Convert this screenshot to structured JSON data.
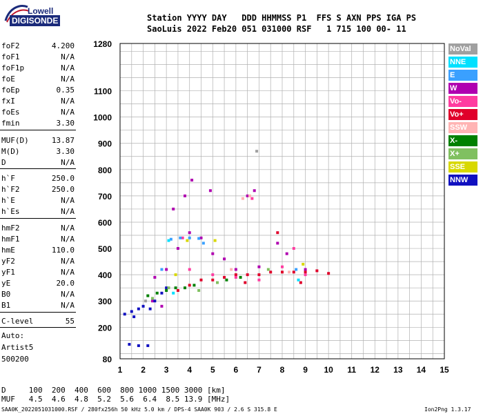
{
  "logo": {
    "line1": "Lowell",
    "line2": "DIGISONDE"
  },
  "header": {
    "row1": "Station YYYY DAY   DDD HHMMSS P1  FFS S AXN PPS IGA PS",
    "row2": "SaoLuis 2022 Feb20 051 031000 RSF   1 715 100 00- 11"
  },
  "params": [
    {
      "k": "foF2",
      "v": "4.200"
    },
    {
      "k": "foF1",
      "v": "N/A"
    },
    {
      "k": "foF1p",
      "v": "N/A"
    },
    {
      "k": "foE",
      "v": "N/A"
    },
    {
      "k": "foEp",
      "v": "0.35"
    },
    {
      "k": "fxI",
      "v": "N/A"
    },
    {
      "k": "foEs",
      "v": "N/A"
    },
    {
      "k": "fmin",
      "v": "3.30"
    },
    {
      "k": "MUF(D)",
      "v": "13.87"
    },
    {
      "k": "M(D)",
      "v": "3.30"
    },
    {
      "k": "D",
      "v": "N/A"
    },
    {
      "k": "h`F",
      "v": "250.0"
    },
    {
      "k": "h`F2",
      "v": "250.0"
    },
    {
      "k": "h`E",
      "v": "N/A"
    },
    {
      "k": "h`Es",
      "v": "N/A"
    },
    {
      "k": "hmF2",
      "v": "N/A"
    },
    {
      "k": "hmF1",
      "v": "N/A"
    },
    {
      "k": "hmE",
      "v": "110.0"
    },
    {
      "k": "yF2",
      "v": "N/A"
    },
    {
      "k": "yF1",
      "v": "N/A"
    },
    {
      "k": "yE",
      "v": "20.0"
    },
    {
      "k": "B0",
      "v": "N/A"
    },
    {
      "k": "B1",
      "v": "N/A"
    },
    {
      "k": "C-level",
      "v": "55"
    }
  ],
  "autoscale": {
    "line1": "Auto:",
    "line2": "Artist5",
    "line3": "500200"
  },
  "legend": [
    {
      "label": "NoVal",
      "bg": "#a0a0a0",
      "fg": "#ffffff"
    },
    {
      "label": "NNE",
      "bg": "#00e0ff",
      "fg": "#ffffff"
    },
    {
      "label": "E",
      "bg": "#3aa0ff",
      "fg": "#ffffff"
    },
    {
      "label": "W",
      "bg": "#b000b0",
      "fg": "#ffffff"
    },
    {
      "label": "Vo-",
      "bg": "#ff3ca0",
      "fg": "#ffffff"
    },
    {
      "label": "Vo+",
      "bg": "#e0002a",
      "fg": "#ffffff"
    },
    {
      "label": "SSW",
      "bg": "#ffb4b4",
      "fg": "#ffffff"
    },
    {
      "label": "X-",
      "bg": "#008000",
      "fg": "#ffffff"
    },
    {
      "label": "X+",
      "bg": "#80c060",
      "fg": "#ffffff"
    },
    {
      "label": "SSE",
      "bg": "#d8d800",
      "fg": "#ffffff"
    },
    {
      "label": "NNW",
      "bg": "#1010c0",
      "fg": "#ffffff"
    }
  ],
  "bottom": {
    "d_row": "D     100  200  400  600  800 1000 1500 3000 [km]",
    "muf_row": "MUF   4.5  4.6  4.8  5.2  5.6  6.4  8.5 13.9 [MHz]"
  },
  "footer": {
    "left": "SAA0K_2022051031000.RSF / 280fx256h 50 kHz 5.0 km / DPS-4 SAA0K 903 / 2.6 S 315.8 E",
    "right": "Ion2Png 1.3.17"
  },
  "chart_data": {
    "type": "scatter",
    "title": "",
    "xlabel": "",
    "ylabel": "",
    "xlim": [
      1,
      15
    ],
    "ylim": [
      80,
      1280
    ],
    "x_ticks": [
      1,
      2,
      3,
      4,
      5,
      6,
      7,
      8,
      9,
      10,
      11,
      12,
      13,
      14,
      15
    ],
    "y_tick_labels": [
      80,
      200,
      300,
      400,
      500,
      600,
      700,
      800,
      900,
      1000,
      1100,
      1280
    ],
    "grid": true,
    "legend_placement": "right",
    "series": [
      {
        "name": "W",
        "color": "#b000b0",
        "points": [
          [
            2.5,
            390
          ],
          [
            3.0,
            420
          ],
          [
            3.5,
            500
          ],
          [
            4.0,
            560
          ],
          [
            4.5,
            540
          ],
          [
            5.0,
            480
          ],
          [
            5.5,
            460
          ],
          [
            6.0,
            420
          ],
          [
            7.0,
            430
          ],
          [
            7.8,
            520
          ],
          [
            8.2,
            480
          ],
          [
            9.0,
            420
          ],
          [
            3.8,
            700
          ],
          [
            4.1,
            760
          ],
          [
            3.3,
            650
          ],
          [
            4.9,
            720
          ],
          [
            6.5,
            700
          ],
          [
            6.8,
            720
          ],
          [
            2.4,
            300
          ],
          [
            2.8,
            280
          ]
        ]
      },
      {
        "name": "Vo+",
        "color": "#e0002a",
        "points": [
          [
            3.5,
            340
          ],
          [
            4.0,
            360
          ],
          [
            4.5,
            380
          ],
          [
            5.0,
            380
          ],
          [
            5.5,
            390
          ],
          [
            6.0,
            400
          ],
          [
            6.5,
            400
          ],
          [
            7.0,
            400
          ],
          [
            7.5,
            410
          ],
          [
            8.0,
            410
          ],
          [
            8.5,
            410
          ],
          [
            9.0,
            410
          ],
          [
            9.5,
            415
          ],
          [
            10.0,
            405
          ],
          [
            7.8,
            560
          ],
          [
            6.4,
            370
          ],
          [
            8.8,
            370
          ]
        ]
      },
      {
        "name": "Vo-",
        "color": "#ff3ca0",
        "points": [
          [
            4.0,
            420
          ],
          [
            5.0,
            400
          ],
          [
            6.0,
            390
          ],
          [
            7.0,
            380
          ],
          [
            8.0,
            430
          ],
          [
            9.0,
            400
          ],
          [
            8.5,
            500
          ],
          [
            6.7,
            690
          ],
          [
            3.7,
            540
          ]
        ]
      },
      {
        "name": "NNW",
        "color": "#1010c0",
        "points": [
          [
            1.2,
            250
          ],
          [
            1.5,
            260
          ],
          [
            1.8,
            270
          ],
          [
            2.0,
            280
          ],
          [
            2.3,
            270
          ],
          [
            2.5,
            300
          ],
          [
            2.8,
            330
          ],
          [
            3.0,
            350
          ],
          [
            1.4,
            135
          ],
          [
            1.8,
            130
          ],
          [
            2.2,
            130
          ],
          [
            1.6,
            240
          ]
        ]
      },
      {
        "name": "E",
        "color": "#3aa0ff",
        "points": [
          [
            3.2,
            535
          ],
          [
            3.6,
            540
          ],
          [
            4.0,
            540
          ],
          [
            4.4,
            538
          ],
          [
            2.8,
            420
          ],
          [
            4.6,
            520
          ],
          [
            8.6,
            420
          ]
        ]
      },
      {
        "name": "X-",
        "color": "#008000",
        "points": [
          [
            2.2,
            320
          ],
          [
            2.6,
            330
          ],
          [
            3.0,
            340
          ],
          [
            3.4,
            350
          ],
          [
            3.8,
            350
          ],
          [
            4.2,
            360
          ],
          [
            5.6,
            380
          ],
          [
            6.2,
            390
          ]
        ]
      },
      {
        "name": "X+",
        "color": "#80c060",
        "points": [
          [
            2.4,
            310
          ],
          [
            3.1,
            350
          ],
          [
            4.4,
            340
          ],
          [
            5.2,
            370
          ],
          [
            7.4,
            420
          ]
        ]
      },
      {
        "name": "SSE",
        "color": "#d8d800",
        "points": [
          [
            3.9,
            530
          ],
          [
            5.1,
            530
          ],
          [
            3.4,
            400
          ],
          [
            8.9,
            440
          ]
        ]
      },
      {
        "name": "SSW",
        "color": "#ffb4b4",
        "points": [
          [
            6.6,
            700
          ],
          [
            6.3,
            690
          ],
          [
            5.8,
            420
          ],
          [
            8.3,
            410
          ]
        ]
      },
      {
        "name": "NNE",
        "color": "#00e0ff",
        "points": [
          [
            3.1,
            530
          ],
          [
            3.3,
            330
          ],
          [
            8.7,
            380
          ]
        ]
      },
      {
        "name": "NoVal",
        "color": "#a0a0a0",
        "points": [
          [
            2.1,
            300
          ],
          [
            6.9,
            870
          ]
        ]
      }
    ]
  }
}
